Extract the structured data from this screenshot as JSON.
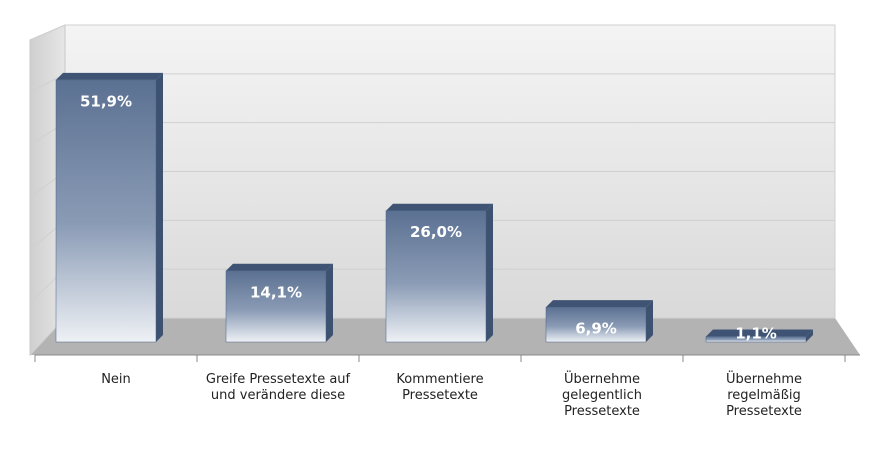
{
  "chart_data": {
    "type": "bar",
    "categories": [
      "Nein",
      "Greife Pressetexte auf\nund verändere diese",
      "Kommentiere\nPressetexte",
      "Übernehme\ngelegentlich\nPressetexte",
      "Übernehme\nregelmäßig\nPressetexte"
    ],
    "values": [
      51.9,
      14.1,
      26.0,
      6.9,
      1.1
    ],
    "value_labels": [
      "51,9%",
      "14,1%",
      "26,0%",
      "6,9%",
      "1,1%"
    ],
    "color": "#5b7192",
    "ylim": [
      0,
      60
    ],
    "yticks": [
      0,
      10,
      20,
      30,
      40,
      50,
      60
    ],
    "grid": true
  }
}
